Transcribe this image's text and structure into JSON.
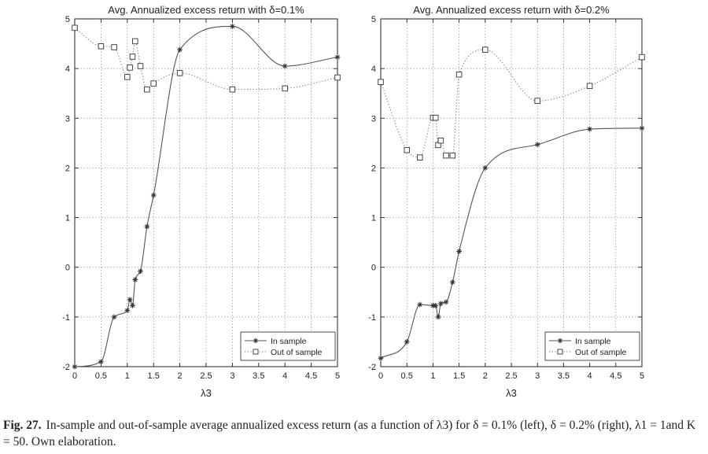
{
  "chart_data": [
    {
      "type": "line",
      "title": "Avg. Annualized excess return with δ=0.1%",
      "xlabel": "λ3",
      "ylabel": "",
      "xlim": [
        0,
        5
      ],
      "ylim": [
        -2,
        5
      ],
      "xticks": [
        "0",
        "0.5",
        "1",
        "1.5",
        "2",
        "2.5",
        "3",
        "3.5",
        "4",
        "4.5",
        "5"
      ],
      "yticks": [
        "5",
        "4",
        "3",
        "2",
        "1",
        "0",
        "-1",
        "-2"
      ],
      "grid": true,
      "legend": "bottom-right",
      "series": [
        {
          "name": "In sample",
          "style": "solid",
          "marker": "star",
          "smooth": true,
          "x": [
            0,
            0.5,
            0.75,
            1.0,
            1.05,
            1.1,
            1.15,
            1.25,
            1.375,
            1.5,
            2,
            3,
            4,
            5
          ],
          "y": [
            -2.0,
            -1.9,
            -1.0,
            -0.87,
            -0.65,
            -0.77,
            -0.25,
            -0.08,
            0.82,
            1.45,
            4.38,
            4.85,
            4.05,
            4.23
          ]
        },
        {
          "name": "Out of sample",
          "style": "dotted",
          "marker": "square",
          "smooth": true,
          "x": [
            0,
            0.5,
            0.75,
            1.0,
            1.05,
            1.1,
            1.15,
            1.25,
            1.375,
            1.5,
            2,
            3,
            4,
            5
          ],
          "y": [
            4.82,
            4.45,
            4.43,
            3.83,
            4.02,
            4.24,
            4.55,
            4.05,
            3.58,
            3.7,
            3.91,
            3.58,
            3.6,
            3.82
          ]
        }
      ]
    },
    {
      "type": "line",
      "title": "Avg. Annualized excess return with δ=0.2%",
      "xlabel": "λ3",
      "ylabel": "",
      "xlim": [
        0,
        5
      ],
      "ylim": [
        -2,
        5
      ],
      "xticks": [
        "0",
        "0.5",
        "1",
        "1.5",
        "2",
        "2.5",
        "3",
        "3.5",
        "4",
        "4.5",
        "5"
      ],
      "yticks": [
        "5",
        "4",
        "3",
        "2",
        "1",
        "0",
        "-1",
        "-2"
      ],
      "grid": true,
      "legend": "bottom-right",
      "series": [
        {
          "name": "In sample",
          "style": "solid",
          "marker": "star",
          "smooth": true,
          "x": [
            0,
            0.5,
            0.75,
            1.0,
            1.05,
            1.1,
            1.15,
            1.25,
            1.375,
            1.5,
            2,
            3,
            4,
            5
          ],
          "y": [
            -1.83,
            -1.5,
            -0.75,
            -0.77,
            -0.77,
            -1.0,
            -0.73,
            -0.7,
            -0.3,
            0.32,
            2.0,
            2.47,
            2.78,
            2.8
          ]
        },
        {
          "name": "Out of sample",
          "style": "dotted",
          "marker": "square",
          "smooth": true,
          "x": [
            0,
            0.5,
            0.75,
            1.0,
            1.05,
            1.1,
            1.15,
            1.25,
            1.375,
            1.5,
            2,
            3,
            4,
            5
          ],
          "y": [
            3.73,
            2.36,
            2.21,
            3.01,
            3.01,
            2.46,
            2.55,
            2.25,
            2.25,
            3.88,
            4.38,
            3.35,
            3.65,
            4.23
          ]
        }
      ]
    }
  ],
  "caption": {
    "label": "Fig. 27.",
    "text": "In-sample and out-of-sample average annualized excess return (as a function of λ3) for δ = 0.1% (left), δ = 0.2% (right), λ1 = 1and K = 50. Own elaboration."
  }
}
